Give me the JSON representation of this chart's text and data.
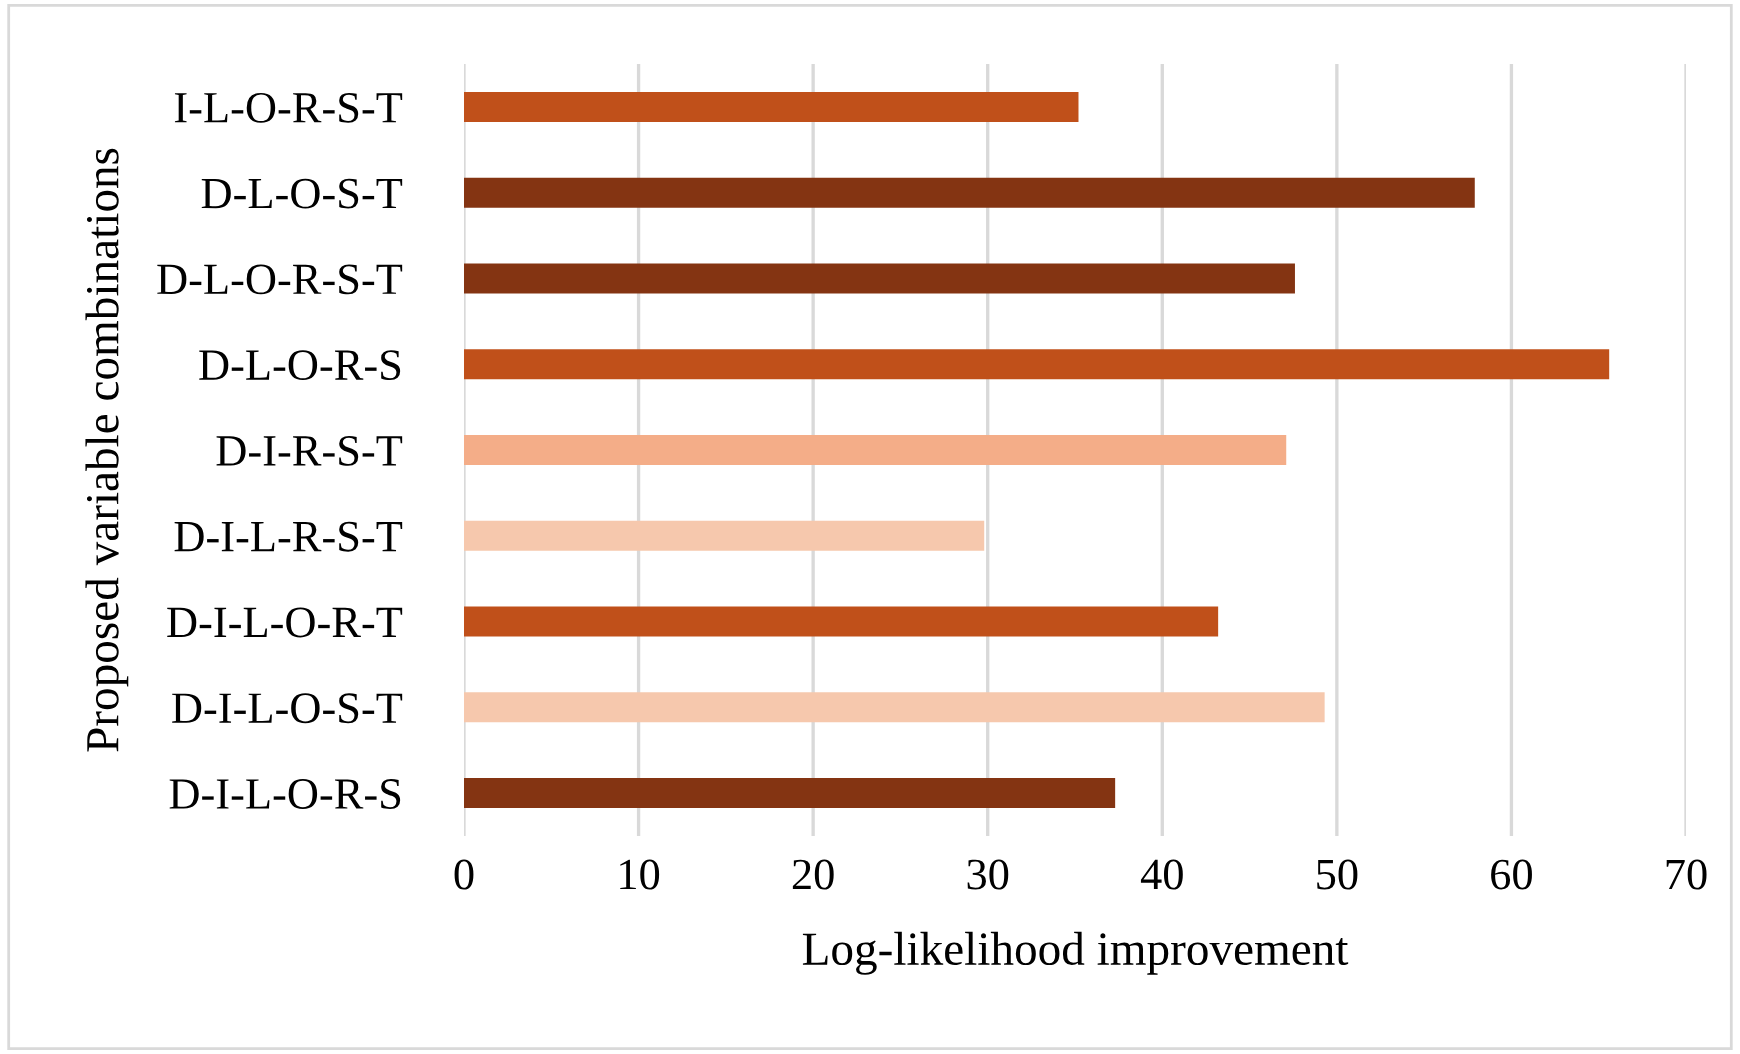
{
  "chart_data": {
    "type": "bar",
    "orientation": "horizontal",
    "xlabel": "Log-likelihood improvement",
    "ylabel": "Proposed variable combinations",
    "categories": [
      "I-L-O-R-S-T",
      "D-L-O-S-T",
      "D-L-O-R-S-T",
      "D-L-O-R-S",
      "D-I-R-S-T",
      "D-I-L-R-S-T",
      "D-I-L-O-R-T",
      "D-I-L-O-S-T",
      "D-I-L-O-R-S"
    ],
    "values": [
      35.2,
      57.9,
      47.6,
      65.6,
      47.1,
      29.8,
      43.2,
      49.3,
      37.3
    ],
    "colors": [
      "#c0501a",
      "#843412",
      "#843412",
      "#c0501a",
      "#f4ad88",
      "#f6c8ad",
      "#c0501a",
      "#f6c8ad",
      "#843412"
    ],
    "xlim": [
      0,
      70
    ],
    "xticks": [
      0,
      10,
      20,
      30,
      40,
      50,
      60,
      70
    ],
    "grid": "x"
  }
}
